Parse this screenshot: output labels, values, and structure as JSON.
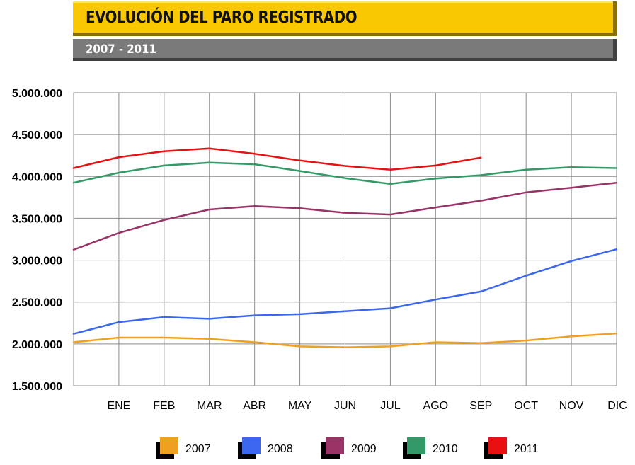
{
  "header": {
    "title": "EVOLUCIÓN DEL PARO REGISTRADO",
    "subtitle": "2007 - 2011"
  },
  "chart_data": {
    "type": "line",
    "categories": [
      "",
      "ENE",
      "FEB",
      "MAR",
      "ABR",
      "MAY",
      "JUN",
      "JUL",
      "AGO",
      "SEP",
      "OCT",
      "NOV",
      "DIC"
    ],
    "ylim": [
      1500000,
      5000000
    ],
    "yticks": [
      1500000,
      2000000,
      2500000,
      3000000,
      3500000,
      4000000,
      4500000,
      5000000
    ],
    "ytick_labels": [
      "1.500.000",
      "2.000.000",
      "2.500.000",
      "3.000.000",
      "3.500.000",
      "4.000.000",
      "4.500.000",
      "5.000.000"
    ],
    "grid": true,
    "legend_position": "bottom",
    "series": [
      {
        "name": "2007",
        "color": "#f0a020",
        "values": [
          2020000,
          2075000,
          2075000,
          2060000,
          2020000,
          1970000,
          1960000,
          1970000,
          2020000,
          2010000,
          2040000,
          2090000,
          2125000
        ]
      },
      {
        "name": "2008",
        "color": "#3a66f0",
        "values": [
          2120000,
          2260000,
          2320000,
          2300000,
          2340000,
          2355000,
          2390000,
          2425000,
          2530000,
          2625000,
          2815000,
          2990000,
          3130000
        ]
      },
      {
        "name": "2009",
        "color": "#993366",
        "values": [
          3125000,
          3325000,
          3480000,
          3605000,
          3645000,
          3620000,
          3565000,
          3545000,
          3630000,
          3710000,
          3810000,
          3865000,
          3925000
        ]
      },
      {
        "name": "2010",
        "color": "#339966",
        "values": [
          3925000,
          4045000,
          4130000,
          4165000,
          4145000,
          4065000,
          3980000,
          3910000,
          3975000,
          4015000,
          4080000,
          4110000,
          4100000
        ]
      },
      {
        "name": "2011",
        "color": "#e81010",
        "values": [
          4100000,
          4230000,
          4300000,
          4335000,
          4270000,
          4190000,
          4125000,
          4080000,
          4130000,
          4225000,
          null,
          null,
          null
        ]
      }
    ]
  }
}
